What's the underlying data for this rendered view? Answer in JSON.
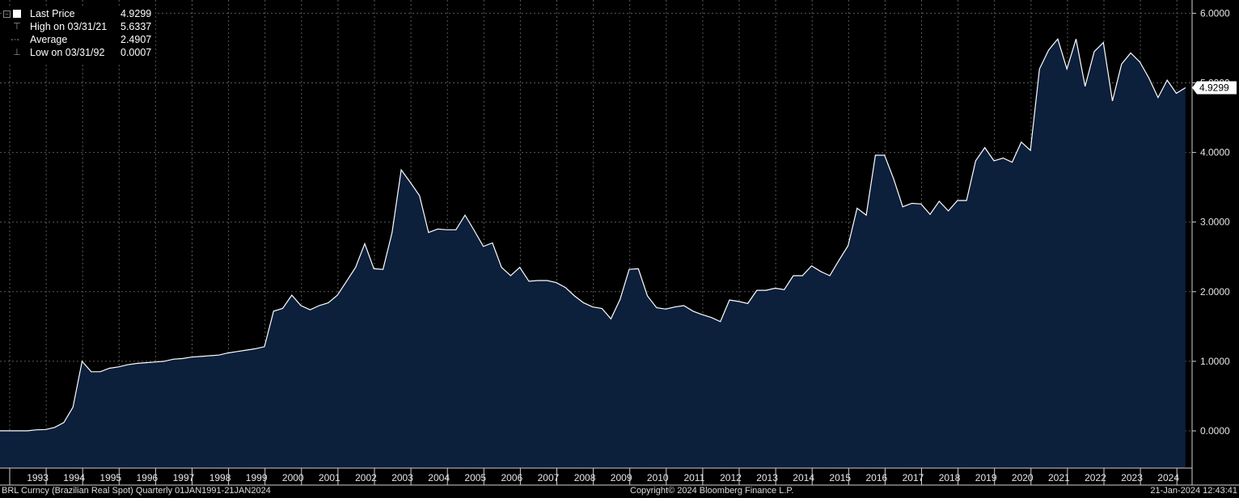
{
  "legend": {
    "items": [
      {
        "label": "Last Price",
        "value": "4.9299"
      },
      {
        "label": "High on 03/31/21",
        "value": "5.6337"
      },
      {
        "label": "Average",
        "value": "2.4907"
      },
      {
        "label": "Low on 03/31/92",
        "value": "0.0007"
      }
    ]
  },
  "last_price_tag": "4.9299",
  "footer": {
    "left": "BRL Curncy (Brazilian Real Spot)  Quarterly 01JAN1991-21JAN2024",
    "center": "Copyright© 2024 Bloomberg Finance L.P.",
    "right": "21-Jan-2024 12:43:41"
  },
  "colors": {
    "background": "#000000",
    "area_fill": "#0c1f3b",
    "line": "#ffffff"
  },
  "chart_data": {
    "type": "area",
    "xlabel": "",
    "ylabel": "",
    "ylim": [
      -0.5,
      6.1
    ],
    "y_ticks": [
      "0.0000",
      "1.0000",
      "2.0000",
      "3.0000",
      "4.0000",
      "5.0000",
      "6.0000"
    ],
    "x_tick_labels": [
      "1993",
      "1994",
      "1995",
      "1996",
      "1997",
      "1998",
      "1999",
      "2000",
      "2001",
      "2002",
      "2003",
      "2004",
      "2005",
      "2006",
      "2007",
      "2008",
      "2009",
      "2010",
      "2011",
      "2012",
      "2013",
      "2014",
      "2015",
      "2016",
      "2017",
      "2018",
      "2019",
      "2020",
      "2021",
      "2022",
      "2023",
      "2024"
    ],
    "grid": true,
    "series": [
      {
        "frequency": "quarterly",
        "start": "1992Q1",
        "values": [
          0.0007,
          0.0007,
          0.0008,
          0.0009,
          0.015,
          0.02,
          0.05,
          0.12,
          0.34,
          1.0,
          0.85,
          0.85,
          0.9,
          0.92,
          0.95,
          0.97,
          0.98,
          0.99,
          1.0,
          1.03,
          1.04,
          1.06,
          1.07,
          1.08,
          1.09,
          1.12,
          1.14,
          1.16,
          1.18,
          1.21,
          1.72,
          1.76,
          1.95,
          1.8,
          1.74,
          1.8,
          1.84,
          1.95,
          2.15,
          2.35,
          2.69,
          2.33,
          2.32,
          2.85,
          3.75,
          3.57,
          3.38,
          2.85,
          2.9,
          2.89,
          2.89,
          3.1,
          2.88,
          2.65,
          2.7,
          2.35,
          2.23,
          2.35,
          2.15,
          2.16,
          2.16,
          2.13,
          2.06,
          1.94,
          1.84,
          1.78,
          1.76,
          1.61,
          1.89,
          2.32,
          2.33,
          1.94,
          1.77,
          1.75,
          1.78,
          1.8,
          1.72,
          1.67,
          1.63,
          1.57,
          1.88,
          1.86,
          1.83,
          2.02,
          2.02,
          2.05,
          2.03,
          2.23,
          2.23,
          2.37,
          2.29,
          2.23,
          2.45,
          2.66,
          3.2,
          3.1,
          3.96,
          3.96,
          3.62,
          3.22,
          3.27,
          3.26,
          3.11,
          3.3,
          3.16,
          3.31,
          3.31,
          3.88,
          4.07,
          3.88,
          3.92,
          3.86,
          4.15,
          4.03,
          5.2,
          5.47,
          5.63,
          5.2,
          5.63,
          4.95,
          5.45,
          5.58,
          4.74,
          5.27,
          5.43,
          5.3,
          5.07,
          4.79,
          5.04,
          4.85,
          4.93
        ]
      }
    ]
  }
}
